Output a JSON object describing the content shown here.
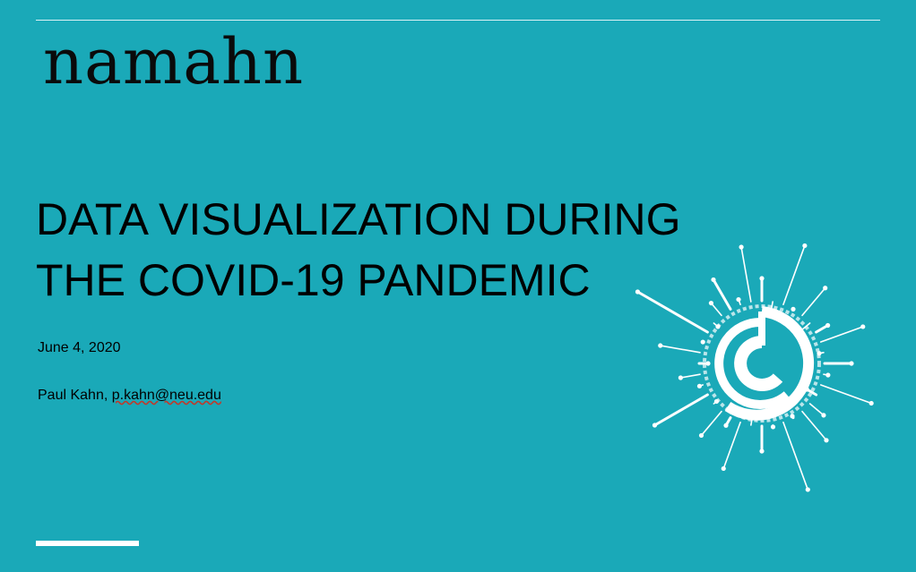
{
  "logo": {
    "text": "namahn"
  },
  "title": {
    "line1": "DATA VISUALIZATION DURING",
    "line2": "THE COVID-19 PANDEMIC"
  },
  "date": "June 4, 2020",
  "author": {
    "name": "Paul Kahn, ",
    "email": "p.kahn@neu.edu"
  },
  "colors": {
    "background": "#1aa9b8",
    "text": "#000000",
    "accent": "#ffffff"
  },
  "icons": [
    "virus-burst-icon"
  ]
}
